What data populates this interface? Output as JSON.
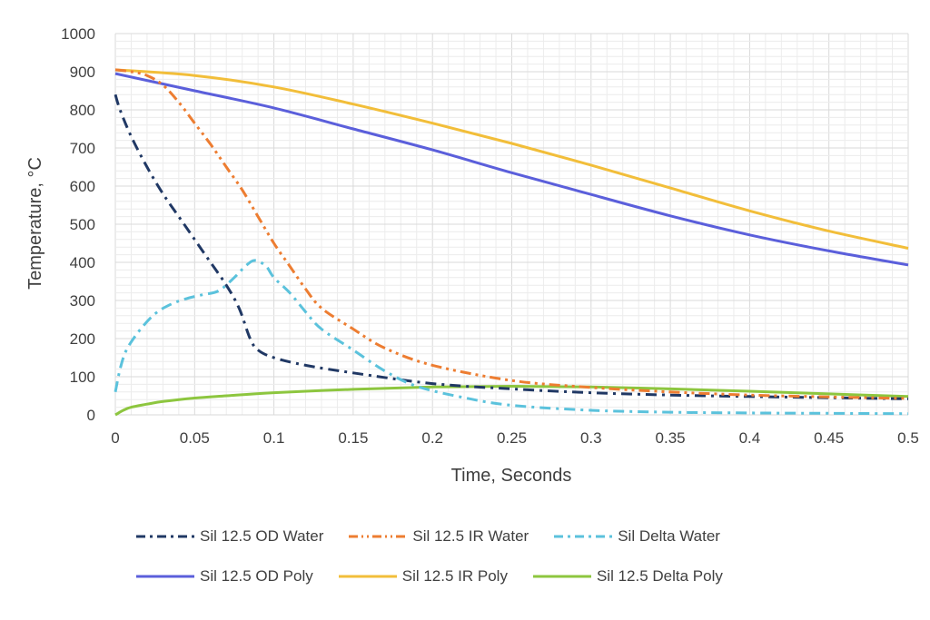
{
  "chart_data": {
    "type": "line",
    "xlabel": "Time, Seconds",
    "ylabel": "Temperature, °C",
    "xlim": [
      0,
      0.5
    ],
    "ylim": [
      0,
      1000
    ],
    "xticks": [
      "0",
      "0.05",
      "0.1",
      "0.15",
      "0.2",
      "0.25",
      "0.3",
      "0.35",
      "0.4",
      "0.45",
      "0.5"
    ],
    "yticks": [
      "0",
      "100",
      "200",
      "300",
      "400",
      "500",
      "600",
      "700",
      "800",
      "900",
      "1000"
    ],
    "grid": true,
    "legend_position": "bottom",
    "series": [
      {
        "name": "Sil 12.5 OD Water",
        "color": "#203864",
        "dash": "dash-dot",
        "x": [
          0,
          0.003,
          0.01,
          0.02,
          0.03,
          0.04,
          0.05,
          0.06,
          0.07,
          0.078,
          0.085,
          0.09,
          0.1,
          0.12,
          0.15,
          0.2,
          0.25,
          0.3,
          0.35,
          0.4,
          0.45,
          0.5
        ],
        "y": [
          840,
          800,
          730,
          650,
          580,
          520,
          460,
          400,
          340,
          280,
          200,
          170,
          150,
          130,
          110,
          82,
          68,
          58,
          52,
          48,
          45,
          42
        ]
      },
      {
        "name": "Sil 12.5 IR Water",
        "color": "#ED7D31",
        "dash": "dash-dot-dot",
        "x": [
          0,
          0.01,
          0.02,
          0.03,
          0.04,
          0.05,
          0.06,
          0.07,
          0.08,
          0.09,
          0.1,
          0.11,
          0.12,
          0.13,
          0.15,
          0.17,
          0.2,
          0.25,
          0.3,
          0.35,
          0.4,
          0.45,
          0.5
        ],
        "y": [
          905,
          900,
          890,
          865,
          820,
          765,
          710,
          650,
          590,
          520,
          450,
          390,
          330,
          280,
          225,
          175,
          130,
          90,
          72,
          60,
          52,
          47,
          43
        ]
      },
      {
        "name": "Sil Delta Water",
        "color": "#5BC2DC",
        "dash": "dash-dot",
        "x": [
          0,
          0.003,
          0.007,
          0.015,
          0.025,
          0.035,
          0.045,
          0.055,
          0.065,
          0.075,
          0.082,
          0.088,
          0.095,
          0.1,
          0.11,
          0.12,
          0.13,
          0.15,
          0.17,
          0.19,
          0.22,
          0.25,
          0.3,
          0.35,
          0.4,
          0.45,
          0.5
        ],
        "y": [
          60,
          120,
          170,
          220,
          265,
          290,
          305,
          315,
          325,
          360,
          390,
          405,
          390,
          360,
          320,
          270,
          225,
          170,
          115,
          75,
          45,
          25,
          12,
          7,
          5,
          4,
          3
        ]
      },
      {
        "name": "Sil 12.5 OD Poly",
        "color": "#5B5FDB",
        "dash": "solid",
        "x": [
          0,
          0.05,
          0.1,
          0.15,
          0.2,
          0.25,
          0.3,
          0.35,
          0.4,
          0.45,
          0.5
        ],
        "y": [
          895,
          850,
          805,
          750,
          695,
          635,
          578,
          522,
          472,
          430,
          393
        ]
      },
      {
        "name": "Sil 12.5 IR Poly",
        "color": "#F2BE3A",
        "dash": "solid",
        "x": [
          0,
          0.05,
          0.1,
          0.15,
          0.2,
          0.25,
          0.3,
          0.35,
          0.4,
          0.45,
          0.5
        ],
        "y": [
          905,
          890,
          860,
          815,
          765,
          712,
          655,
          595,
          535,
          482,
          437
        ]
      },
      {
        "name": "Sil 12.5 Delta Poly",
        "color": "#8DC63F",
        "dash": "solid",
        "x": [
          0,
          0.005,
          0.01,
          0.02,
          0.03,
          0.05,
          0.07,
          0.1,
          0.15,
          0.2,
          0.25,
          0.3,
          0.35,
          0.4,
          0.45,
          0.5
        ],
        "y": [
          0,
          12,
          20,
          28,
          35,
          44,
          50,
          58,
          67,
          73,
          75,
          73,
          68,
          62,
          55,
          48
        ]
      }
    ]
  }
}
